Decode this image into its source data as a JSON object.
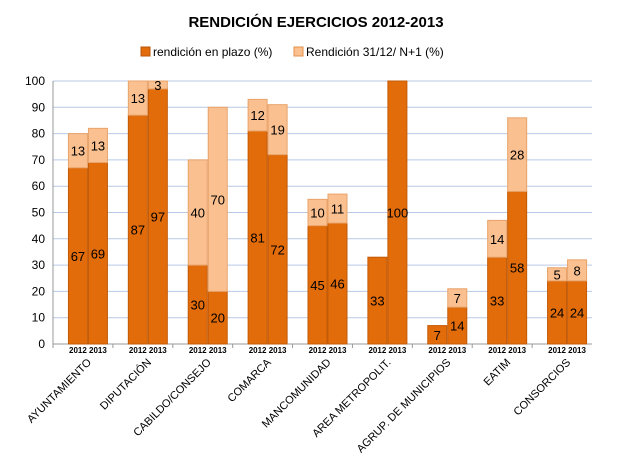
{
  "chart_data": {
    "type": "bar",
    "stacked": true,
    "title": "RENDICIÓN EJERCICIOS 2012-2013",
    "xlabel": "",
    "ylabel": "",
    "ylim": [
      0,
      100
    ],
    "yticks": [
      0,
      10,
      20,
      30,
      40,
      50,
      60,
      70,
      80,
      90,
      100
    ],
    "grid": true,
    "legend_position": "top",
    "colors": {
      "base": "#E36C0A",
      "extra": "#FAC090",
      "grid": "#B9C9E6"
    },
    "years": [
      "2012",
      "2013"
    ],
    "categories": [
      "AYUNTAMIENTO",
      "DIPUTACIÓN",
      "CABILDO/CONSEJO",
      "COMARCA",
      "MANCOMUNIDAD",
      "AREA METROPOLIT.",
      "AGRUP. DE MUNICIPIOS",
      "EATIM",
      "CONSORCIOS"
    ],
    "series": [
      {
        "name": "rendición en plazo (%)",
        "values_2012": [
          67,
          87,
          30,
          81,
          45,
          33,
          7,
          33,
          24
        ],
        "values_2013": [
          69,
          97,
          20,
          72,
          46,
          100,
          14,
          58,
          24
        ]
      },
      {
        "name": "Rendición 31/12/ N+1 (%)",
        "values_2012": [
          13,
          13,
          40,
          12,
          10,
          null,
          null,
          14,
          5
        ],
        "values_2013": [
          13,
          3,
          70,
          19,
          11,
          null,
          7,
          28,
          8
        ]
      }
    ]
  }
}
